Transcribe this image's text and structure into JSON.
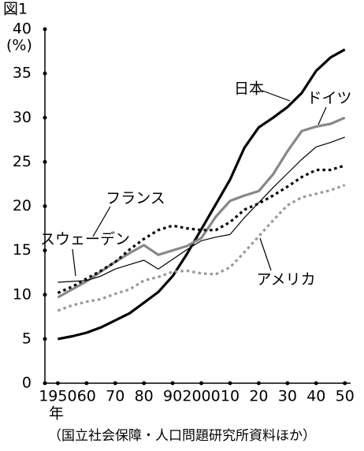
{
  "chart_data": {
    "type": "line",
    "title": "図1",
    "y_label": "(%)",
    "x_label": "年",
    "source": "（国立社会保障・人口問題研究所資料ほか）",
    "x": [
      1950,
      1955,
      1960,
      1965,
      1970,
      1975,
      1980,
      1985,
      1990,
      1995,
      2000,
      2005,
      2010,
      2015,
      2020,
      2025,
      2030,
      2035,
      2040,
      2045,
      2050
    ],
    "xlim": [
      1945.5,
      2052
    ],
    "xticks": [
      {
        "value": 1950,
        "label": "1950"
      },
      {
        "value": 1960,
        "label": "60"
      },
      {
        "value": 1970,
        "label": "70"
      },
      {
        "value": 1980,
        "label": "80"
      },
      {
        "value": 1990,
        "label": "90"
      },
      {
        "value": 2000,
        "label": "2000"
      },
      {
        "value": 2010,
        "label": "10"
      },
      {
        "value": 2020,
        "label": "20"
      },
      {
        "value": 2030,
        "label": "30"
      },
      {
        "value": 2040,
        "label": "40"
      },
      {
        "value": 2050,
        "label": "50"
      }
    ],
    "ylim": [
      0,
      40
    ],
    "yticks": [
      0,
      5,
      10,
      15,
      20,
      25,
      30,
      35,
      40
    ],
    "grid": false,
    "series": [
      {
        "name": "日本",
        "color": "#000000",
        "dashed": false,
        "values": [
          5.0,
          5.3,
          5.7,
          6.3,
          7.1,
          7.9,
          9.1,
          10.3,
          12.1,
          14.6,
          17.4,
          20.2,
          23.0,
          26.6,
          28.9,
          30.0,
          31.2,
          32.8,
          35.3,
          36.8,
          37.7
        ]
      },
      {
        "name": "ドイツ",
        "color": "#888888",
        "dashed": false,
        "values": [
          9.7,
          10.6,
          11.5,
          12.6,
          13.7,
          14.7,
          15.6,
          14.5,
          15.0,
          15.5,
          16.4,
          18.8,
          20.6,
          21.2,
          21.7,
          23.6,
          26.2,
          28.5,
          29.0,
          29.3,
          30.0
        ]
      },
      {
        "name": "フランス",
        "color": "#000000",
        "dashed": false,
        "thin": true,
        "values": [
          11.4,
          11.5,
          11.6,
          12.1,
          12.9,
          13.4,
          13.9,
          12.9,
          14.0,
          15.1,
          16.1,
          16.5,
          16.8,
          18.7,
          20.4,
          22.1,
          23.7,
          25.3,
          26.7,
          27.2,
          27.8
        ]
      },
      {
        "name": "スウェーデン",
        "color": "#000000",
        "dashed": true,
        "values": [
          10.2,
          10.9,
          11.8,
          12.7,
          13.7,
          15.1,
          16.3,
          17.3,
          17.8,
          17.5,
          17.3,
          17.3,
          18.2,
          19.6,
          20.3,
          21.2,
          22.2,
          23.3,
          24.1,
          24.1,
          24.6
        ]
      },
      {
        "name": "アメリカ",
        "color": "#999999",
        "dashed": true,
        "values": [
          8.2,
          8.8,
          9.2,
          9.5,
          10.1,
          10.6,
          11.6,
          12.0,
          12.6,
          12.7,
          12.4,
          12.3,
          13.1,
          14.8,
          16.6,
          18.4,
          20.1,
          21.0,
          21.4,
          21.8,
          22.4
        ]
      }
    ]
  }
}
